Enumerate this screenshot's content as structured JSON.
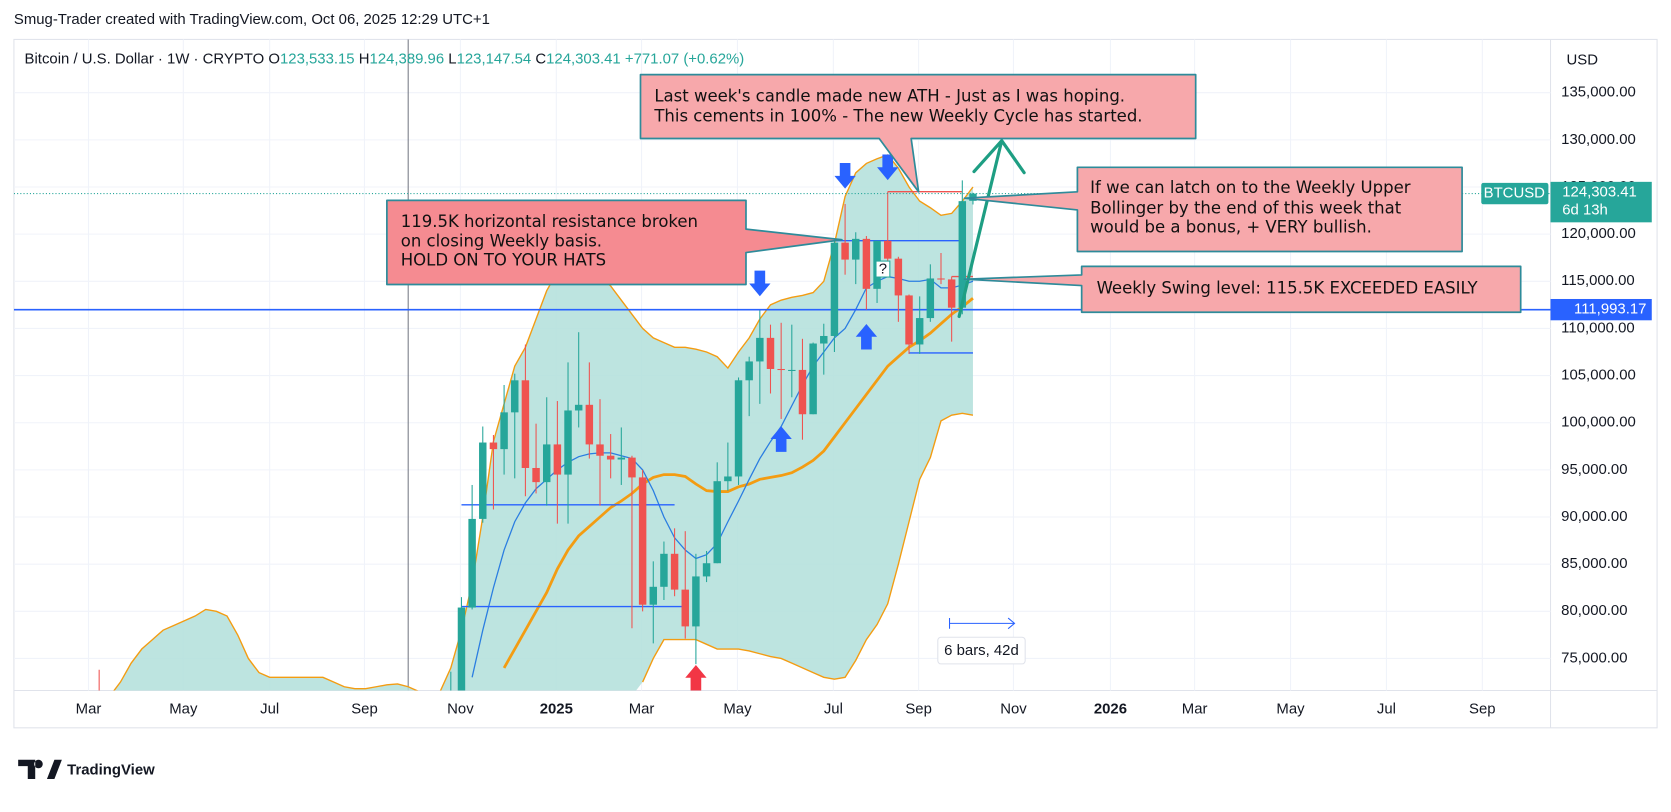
{
  "header": {
    "credit": "Smug-Trader created with TradingView.com, Oct 06, 2025 12:29 UTC+1"
  },
  "footer": {
    "logo": "TradingView"
  },
  "chart_data": {
    "type": "candlestick",
    "legend": {
      "symbol": "Bitcoin / U.S. Dollar · 1W · CRYPTO",
      "items": [
        {
          "key": "O",
          "value": "123,533.15"
        },
        {
          "key": "H",
          "value": "124,389.96"
        },
        {
          "key": "L",
          "value": "123,147.54"
        },
        {
          "key": "C",
          "value": "124,303.41"
        }
      ],
      "change": "+771.07 (+0.62%)"
    },
    "currency": "USD",
    "up_color": "#26a69a",
    "down_color": "#ef5350",
    "xlim": [
      -8,
      136.2
    ],
    "ylim": [
      71600,
      140650
    ],
    "grid": true,
    "xticks": [
      {
        "value": -1,
        "label": "Mar"
      },
      {
        "value": 7.9,
        "label": "May"
      },
      {
        "value": 16,
        "label": "Jul"
      },
      {
        "value": 24.9,
        "label": "Sep"
      },
      {
        "value": 33.9,
        "label": "Nov"
      },
      {
        "value": 42.9,
        "label": "2025"
      },
      {
        "value": 50.9,
        "label": "Mar"
      },
      {
        "value": 59.9,
        "label": "May"
      },
      {
        "value": 68.9,
        "label": "Jul"
      },
      {
        "value": 76.9,
        "label": "Sep"
      },
      {
        "value": 85.8,
        "label": "Nov"
      },
      {
        "value": 94.9,
        "label": "2026"
      },
      {
        "value": 102.8,
        "label": "Mar"
      },
      {
        "value": 111.8,
        "label": "May"
      },
      {
        "value": 120.8,
        "label": "Jul"
      },
      {
        "value": 129.8,
        "label": "Sep"
      }
    ],
    "yticks": [
      {
        "value": 75000,
        "label": "75,000.00"
      },
      {
        "value": 80000,
        "label": "80,000.00"
      },
      {
        "value": 85000,
        "label": "85,000.00"
      },
      {
        "value": 90000,
        "label": "90,000.00"
      },
      {
        "value": 95000,
        "label": "95,000.00"
      },
      {
        "value": 100000,
        "label": "100,000.00"
      },
      {
        "value": 105000,
        "label": "105,000.00"
      },
      {
        "value": 110000,
        "label": "110,000.00"
      },
      {
        "value": 115000,
        "label": "115,000.00"
      },
      {
        "value": 120000,
        "label": "120,000.00"
      },
      {
        "value": 125000,
        "label": "125,000.00"
      },
      {
        "value": 130000,
        "label": "130,000.00"
      },
      {
        "value": 135000,
        "label": "135,000.00"
      }
    ],
    "open": [
      68900,
      null,
      null,
      null,
      null,
      null,
      null,
      null,
      null,
      null,
      null,
      null,
      null,
      null,
      null,
      null,
      null,
      null,
      null,
      null,
      null,
      null,
      null,
      null,
      null,
      null,
      null,
      null,
      null,
      null,
      null,
      null,
      null,
      68000,
      68700,
      80400,
      89800,
      97900,
      97200,
      101100,
      104500,
      95200,
      93700,
      97700,
      94500,
      101300,
      101900,
      97700,
      96500,
      96100,
      96300,
      94200,
      80700,
      82600,
      86100,
      82300,
      78400,
      83700,
      85100,
      93800,
      94300,
      104500,
      106500,
      109000,
      105700,
      105600,
      105600,
      100900,
      108400,
      109200,
      119100,
      117300,
      119500,
      114200,
      119300,
      117400,
      113500,
      108300,
      111100,
      115300,
      115200,
      112200,
      123533.15
    ],
    "high": [
      73800,
      null,
      null,
      null,
      null,
      null,
      null,
      null,
      null,
      null,
      null,
      null,
      null,
      null,
      null,
      null,
      null,
      null,
      null,
      null,
      null,
      null,
      null,
      null,
      null,
      null,
      null,
      null,
      null,
      null,
      null,
      null,
      null,
      73600,
      81500,
      93400,
      99600,
      98700,
      104000,
      105200,
      108300,
      99900,
      102700,
      102300,
      106400,
      109600,
      106400,
      102500,
      98800,
      99500,
      96500,
      95000,
      85300,
      87400,
      88800,
      88500,
      86100,
      86400,
      95800,
      97900,
      104800,
      107000,
      111900,
      110400,
      110600,
      110400,
      108900,
      108500,
      110500,
      119500,
      123200,
      120200,
      119800,
      119300,
      124500,
      117600,
      113600,
      113400,
      116800,
      118000,
      115500,
      125700,
      124389.96
    ],
    "low": [
      66900,
      null,
      null,
      null,
      null,
      null,
      null,
      null,
      null,
      null,
      null,
      null,
      null,
      null,
      null,
      null,
      null,
      null,
      null,
      null,
      null,
      null,
      null,
      null,
      null,
      null,
      null,
      null,
      null,
      null,
      null,
      null,
      null,
      67500,
      66800,
      80200,
      89400,
      90800,
      94500,
      94100,
      92200,
      92500,
      91200,
      89300,
      89300,
      99500,
      96200,
      91200,
      94100,
      93400,
      78200,
      80000,
      76600,
      81200,
      81600,
      77100,
      74400,
      83100,
      85100,
      92800,
      93400,
      100700,
      102000,
      103100,
      100400,
      102700,
      98200,
      100900,
      105100,
      107500,
      115700,
      114700,
      112000,
      112700,
      116800,
      110700,
      107300,
      107300,
      110700,
      114700,
      108600,
      111500,
      123147.54
    ],
    "close": [
      68400,
      null,
      null,
      null,
      null,
      null,
      null,
      null,
      null,
      null,
      null,
      null,
      null,
      null,
      null,
      null,
      null,
      null,
      null,
      null,
      null,
      null,
      null,
      null,
      null,
      null,
      null,
      null,
      null,
      null,
      null,
      null,
      null,
      69400,
      80400,
      89800,
      97900,
      97200,
      101100,
      104500,
      95200,
      93700,
      97700,
      94500,
      101300,
      101900,
      97700,
      96500,
      96100,
      96300,
      94200,
      80700,
      82600,
      86100,
      82300,
      78400,
      83700,
      85100,
      93800,
      94300,
      104500,
      106500,
      109000,
      105700,
      105600,
      105600,
      100900,
      108400,
      109200,
      119100,
      117300,
      119500,
      114200,
      119300,
      117400,
      113500,
      108300,
      111100,
      115300,
      115200,
      112200,
      123500,
      124303.41
    ],
    "band_fill": "#b2dfdb",
    "series": [
      {
        "color": "#f39c12",
        "width": 1.3,
        "values": [
          70000,
          71000,
          72500,
          74500,
          76000,
          77000,
          78000,
          78500,
          79000,
          79500,
          80200,
          80000,
          79500,
          77500,
          75000,
          73500,
          73000,
          73000,
          73000,
          73000,
          73000,
          73000,
          72500,
          72000,
          71800,
          71800,
          72000,
          72200,
          72300,
          72000,
          71500,
          71000,
          71500,
          74000,
          78000,
          83000,
          90000,
          98000,
          102000,
          106000,
          108000,
          111000,
          114000,
          116000,
          117000,
          117000,
          116000,
          115500,
          114500,
          113000,
          111500,
          110000,
          109000,
          108500,
          108000,
          108000,
          107800,
          107500,
          107000,
          105800,
          107500,
          109000,
          111000,
          112500,
          113000,
          113300,
          113500,
          113800,
          115000,
          119000,
          124000,
          126500,
          127500,
          128000,
          128400,
          127000,
          125000,
          123500,
          122800,
          122000,
          122200,
          123500,
          125000
        ]
      },
      {
        "color": "#f39c12",
        "width": 1.3,
        "values": [
          null,
          null,
          null,
          null,
          null,
          null,
          null,
          null,
          null,
          null,
          null,
          null,
          null,
          null,
          null,
          null,
          null,
          null,
          null,
          null,
          null,
          null,
          null,
          null,
          null,
          null,
          null,
          null,
          null,
          null,
          null,
          null,
          null,
          null,
          null,
          null,
          null,
          null,
          null,
          null,
          null,
          null,
          null,
          null,
          null,
          null,
          null,
          null,
          null,
          null,
          null,
          72500,
          75000,
          77000,
          77000,
          77000,
          77000,
          76500,
          76000,
          76000,
          76000,
          75800,
          75500,
          75200,
          75000,
          74500,
          74000,
          73500,
          73000,
          72800,
          73000,
          74800,
          77000,
          78600,
          80800,
          85000,
          89500,
          94000,
          96300,
          100200,
          100800,
          101000,
          100800
        ]
      },
      {
        "color": "#f39c12",
        "width": 2.6,
        "values": [
          null,
          null,
          null,
          null,
          null,
          null,
          null,
          null,
          null,
          null,
          null,
          null,
          null,
          null,
          null,
          null,
          null,
          null,
          null,
          null,
          null,
          null,
          null,
          null,
          null,
          null,
          null,
          null,
          null,
          null,
          null,
          null,
          null,
          null,
          null,
          null,
          null,
          null,
          74000,
          76000,
          78000,
          80000,
          82000,
          84500,
          86500,
          88000,
          89000,
          90000,
          91000,
          91700,
          92500,
          93500,
          94200,
          94500,
          94500,
          94300,
          93500,
          92800,
          92700,
          92700,
          93200,
          93500,
          94000,
          94200,
          94400,
          94700,
          95300,
          96000,
          97000,
          98500,
          100000,
          101500,
          103000,
          104500,
          106000,
          107000,
          108000,
          108700,
          109500,
          110500,
          111500,
          112300,
          113200
        ]
      },
      {
        "color": "#2a7de1",
        "width": 1.2,
        "values": [
          null,
          null,
          null,
          null,
          null,
          null,
          null,
          null,
          null,
          null,
          null,
          null,
          null,
          null,
          null,
          null,
          null,
          null,
          null,
          null,
          null,
          null,
          null,
          null,
          null,
          null,
          null,
          null,
          null,
          null,
          null,
          null,
          null,
          null,
          null,
          73000,
          78000,
          82500,
          86500,
          89500,
          91500,
          93000,
          94000,
          95000,
          95800,
          96400,
          96700,
          96800,
          96800,
          96500,
          96200,
          95000,
          92800,
          90000,
          87800,
          86500,
          85600,
          86000,
          87200,
          89500,
          91700,
          94000,
          96200,
          98000,
          99600,
          101800,
          104000,
          106000,
          107500,
          109000,
          110000,
          112000,
          114300,
          115000,
          115500,
          115300,
          115000,
          115000,
          115200,
          114300,
          114300,
          114600,
          115000
        ]
      }
    ],
    "hlines": [
      {
        "value": 119300,
        "from": 61,
        "to": 81,
        "color": "#2962ff"
      },
      {
        "value": 115500,
        "from": 80,
        "to": 82,
        "color": "#ef5350"
      },
      {
        "value": 124500,
        "from": 74,
        "to": 81,
        "color": "#ef5350"
      },
      {
        "value": 107400,
        "from": 76,
        "to": 82,
        "color": "#2962ff"
      },
      {
        "value": 91300,
        "from": 34,
        "to": 54,
        "color": "#2962ff"
      },
      {
        "value": 80500,
        "from": 34,
        "to": 55,
        "color": "#2962ff"
      }
    ],
    "level": {
      "value": 111993.17,
      "label": "111,993.17",
      "color": "#2962ff"
    },
    "last": {
      "symbol": "BTCUSD",
      "price": "124,303.41",
      "countdown": "6d 13h"
    },
    "measure": "6 bars, 42d",
    "marker": "?",
    "annotations": [
      {
        "lines": [
          "Last week's candle made new ATH - Just as I was hoping.",
          "This cements in 100% - The new Weekly Cycle has started."
        ]
      },
      {
        "lines": [
          "119.5K horizontal resistance broken",
          "on closing Weekly basis.",
          "HOLD ON TO YOUR HATS"
        ]
      },
      {
        "lines": [
          "If we can latch on to the Weekly Upper",
          "Bollinger by the end of this week that",
          "would be a bonus, + VERY bullish."
        ]
      },
      {
        "lines": [
          "Weekly Swing level: 115.5K EXCEEDED EASILY"
        ]
      }
    ]
  }
}
